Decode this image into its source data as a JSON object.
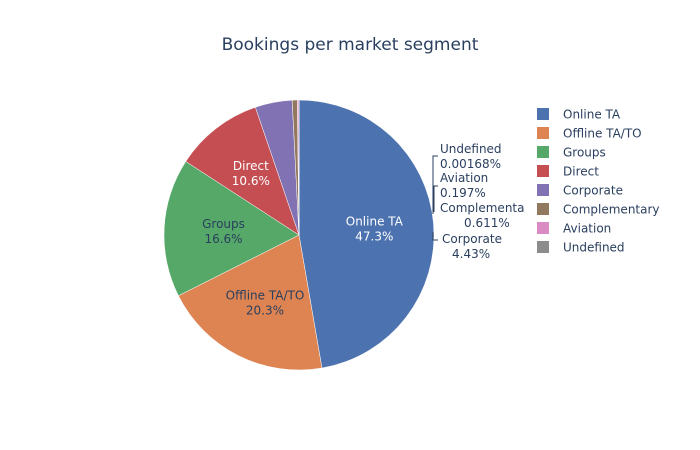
{
  "chart_data": {
    "type": "pie",
    "title": "Bookings per market segment",
    "slices": [
      {
        "label": "Online TA",
        "percent_text": "47.3%",
        "color": "#4c72b0",
        "text_color": "#ffffff"
      },
      {
        "label": "Offline TA/TO",
        "percent_text": "20.3%",
        "color": "#dd8452",
        "text_color": "#2a3f5f"
      },
      {
        "label": "Groups",
        "percent_text": "16.6%",
        "color": "#55a868",
        "text_color": "#2a3f5f"
      },
      {
        "label": "Direct",
        "percent_text": "10.6%",
        "color": "#c44e52",
        "text_color": "#ffffff"
      },
      {
        "label": "Corporate",
        "percent_text": "4.43%",
        "color": "#8172b3",
        "text_color": "#2a3f5f"
      },
      {
        "label": "Complementary",
        "display_label": "Complementa",
        "percent_text": "0.611%",
        "color": "#937860",
        "text_color": "#2a3f5f"
      },
      {
        "label": "Aviation",
        "percent_text": "0.197%",
        "color": "#da8bc3",
        "text_color": "#2a3f5f"
      },
      {
        "label": "Undefined",
        "percent_text": "0.00168%",
        "color": "#8c8c8c",
        "text_color": "#2a3f5f"
      }
    ],
    "values": [
      47.3,
      20.3,
      16.6,
      10.6,
      4.43,
      0.611,
      0.197,
      0.00168
    ],
    "legend": [
      "Online TA",
      "Offline TA/TO",
      "Groups",
      "Direct",
      "Corporate",
      "Complementary",
      "Aviation",
      "Undefined"
    ],
    "legend_position": "top-right",
    "direction": "clockwise"
  }
}
